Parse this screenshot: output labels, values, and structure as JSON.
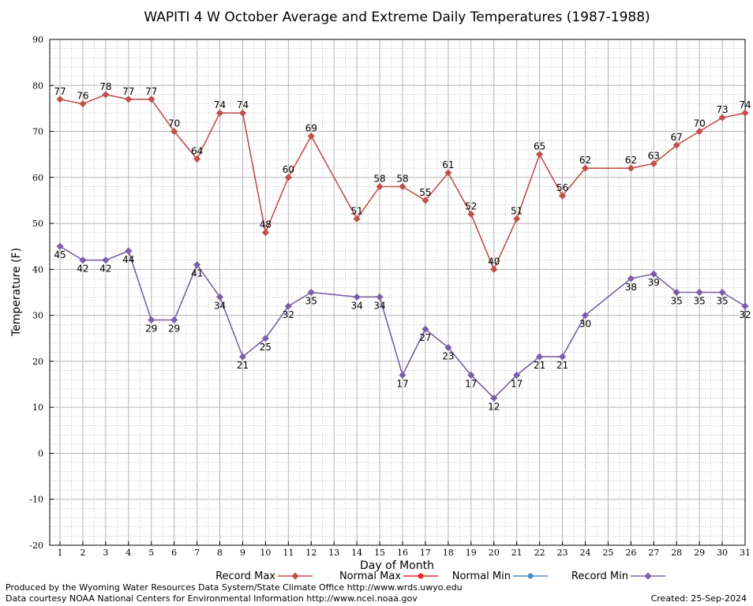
{
  "chart_data": {
    "type": "line",
    "title": "WAPITI 4 W October Average and Extreme Daily Temperatures (1987-1988)",
    "xlabel": "Day of Month",
    "ylabel": "Temperature (F)",
    "xlim": [
      1,
      31
    ],
    "ylim": [
      -20,
      90
    ],
    "y_ticks": [
      -20,
      -10,
      0,
      10,
      20,
      30,
      40,
      50,
      60,
      70,
      80,
      90
    ],
    "x": [
      1,
      2,
      3,
      4,
      5,
      6,
      7,
      8,
      9,
      10,
      11,
      12,
      13,
      14,
      15,
      16,
      17,
      18,
      19,
      20,
      21,
      22,
      23,
      24,
      25,
      26,
      27,
      28,
      29,
      30,
      31
    ],
    "grid": true,
    "legend_position": "bottom",
    "series": [
      {
        "name": "Record Max",
        "color": "#c0504d",
        "marker": "diamond",
        "points": [
          [
            1,
            77
          ],
          [
            2,
            76
          ],
          [
            3,
            78
          ],
          [
            4,
            77
          ],
          [
            5,
            77
          ],
          [
            6,
            70
          ],
          [
            7,
            64
          ],
          [
            8,
            74
          ],
          [
            9,
            74
          ],
          [
            10,
            48
          ],
          [
            11,
            60
          ],
          [
            12,
            69
          ],
          [
            14,
            51
          ],
          [
            15,
            58
          ],
          [
            16,
            58
          ],
          [
            17,
            55
          ],
          [
            18,
            61
          ],
          [
            19,
            52
          ],
          [
            20,
            40
          ],
          [
            21,
            51
          ],
          [
            22,
            65
          ],
          [
            23,
            56
          ],
          [
            24,
            62
          ],
          [
            26,
            62
          ],
          [
            27,
            63
          ],
          [
            28,
            67
          ],
          [
            29,
            70
          ],
          [
            30,
            73
          ],
          [
            31,
            74
          ]
        ]
      },
      {
        "name": "Normal Max",
        "color": "#e8262b",
        "marker": "dot",
        "points": []
      },
      {
        "name": "Normal Min",
        "color": "#4a8fc4",
        "marker": "dot",
        "points": []
      },
      {
        "name": "Record Min",
        "color": "#7a5fa8",
        "marker": "diamond",
        "points": [
          [
            1,
            45
          ],
          [
            2,
            42
          ],
          [
            3,
            42
          ],
          [
            4,
            44
          ],
          [
            5,
            29
          ],
          [
            6,
            29
          ],
          [
            7,
            41
          ],
          [
            8,
            34
          ],
          [
            9,
            21
          ],
          [
            10,
            25
          ],
          [
            11,
            32
          ],
          [
            12,
            35
          ],
          [
            14,
            34
          ],
          [
            15,
            34
          ],
          [
            16,
            17
          ],
          [
            17,
            27
          ],
          [
            18,
            23
          ],
          [
            19,
            17
          ],
          [
            20,
            12
          ],
          [
            21,
            17
          ],
          [
            22,
            21
          ],
          [
            23,
            21
          ],
          [
            24,
            30
          ],
          [
            26,
            38
          ],
          [
            27,
            39
          ],
          [
            28,
            35
          ],
          [
            29,
            35
          ],
          [
            30,
            35
          ],
          [
            31,
            32
          ]
        ]
      }
    ]
  },
  "footer": {
    "produced_by": "Produced by the Wyoming Water Resources Data System/State Climate Office http://www.wrds.uwyo.edu",
    "courtesy": "Data courtesy NOAA National Centers for Environmental Information http://www.ncei.noaa.gov",
    "created": "Created:  25-Sep-2024"
  }
}
